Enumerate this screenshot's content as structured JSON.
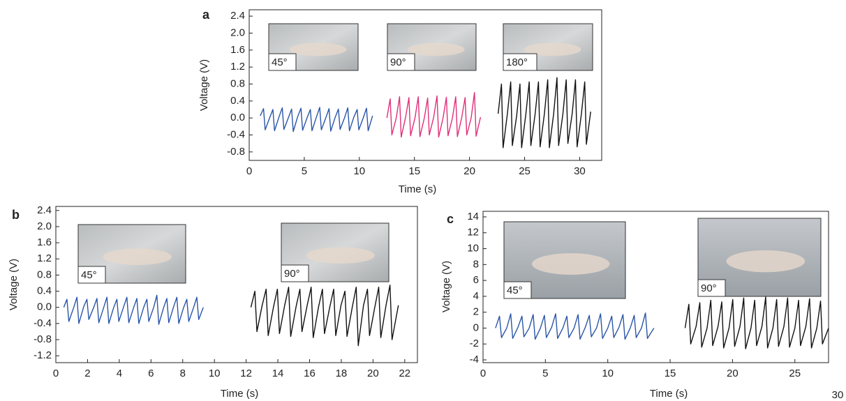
{
  "chart_data": [
    {
      "type": "line",
      "panel_label": "a",
      "xlabel": "Time (s)",
      "ylabel": "Voltage (V)",
      "xlim": [
        0,
        32
      ],
      "ylim": [
        -1.0,
        2.55
      ],
      "xticks": [
        0,
        5,
        10,
        15,
        20,
        25,
        30
      ],
      "yticks": [
        -0.8,
        -0.4,
        {
          "value": 0,
          "label": "0.0"
        },
        0.4,
        0.8,
        1.2,
        1.6,
        {
          "value": 2,
          "label": "2.0"
        },
        2.4
      ],
      "insets": [
        "45°",
        "90°",
        "180°"
      ],
      "series": [
        {
          "color": "#2a55a8",
          "x": [
            1.0,
            1.3,
            1.45,
            1.85,
            2.15,
            2.3,
            2.7,
            3.0,
            3.15,
            3.55,
            3.85,
            4.0,
            4.4,
            4.7,
            4.85,
            5.25,
            5.55,
            5.7,
            6.1,
            6.4,
            6.55,
            6.95,
            7.25,
            7.4,
            7.8,
            8.1,
            8.25,
            8.65,
            8.95,
            9.1,
            9.5,
            9.8,
            9.95,
            10.35,
            10.65,
            10.8,
            11.2
          ],
          "values": [
            0.05,
            0.22,
            -0.28,
            0.0,
            0.2,
            -0.3,
            0.02,
            0.24,
            -0.27,
            0.0,
            0.21,
            -0.32,
            0.03,
            0.23,
            -0.29,
            0.0,
            0.2,
            -0.3,
            0.02,
            0.25,
            -0.28,
            0.0,
            0.22,
            -0.31,
            0.01,
            0.21,
            -0.27,
            0.0,
            0.24,
            -0.3,
            0.02,
            0.2,
            -0.28,
            0.0,
            0.23,
            -0.3,
            0.05
          ]
        },
        {
          "color": "#e0307a",
          "x": [
            12.5,
            12.8,
            12.95,
            13.35,
            13.65,
            13.8,
            14.2,
            14.5,
            14.65,
            15.05,
            15.35,
            15.5,
            15.9,
            16.2,
            16.35,
            16.75,
            17.05,
            17.2,
            17.6,
            17.9,
            18.05,
            18.45,
            18.75,
            18.9,
            19.3,
            19.6,
            19.75,
            20.15,
            20.45,
            20.6,
            21.0
          ],
          "values": [
            0.0,
            0.45,
            -0.4,
            0.0,
            0.5,
            -0.45,
            0.02,
            0.48,
            -0.42,
            0.0,
            0.5,
            -0.44,
            0.0,
            0.47,
            -0.4,
            0.02,
            0.52,
            -0.45,
            0.0,
            0.49,
            -0.42,
            0.0,
            0.5,
            -0.44,
            0.02,
            0.48,
            -0.4,
            0.0,
            0.6,
            -0.43,
            0.02
          ]
        },
        {
          "color": "#111111",
          "x": [
            22.6,
            22.9,
            23.05,
            23.44,
            23.74,
            23.89,
            24.28,
            24.58,
            24.73,
            25.12,
            25.42,
            25.57,
            25.96,
            26.26,
            26.41,
            26.8,
            27.1,
            27.25,
            27.64,
            27.94,
            28.09,
            28.48,
            28.78,
            28.93,
            29.32,
            29.62,
            29.77,
            30.16,
            30.46,
            30.61,
            31.0
          ],
          "values": [
            0.1,
            0.8,
            -0.7,
            0.1,
            0.85,
            -0.65,
            0.05,
            0.8,
            -0.7,
            0.1,
            0.85,
            -0.65,
            0.1,
            0.85,
            -0.68,
            0.1,
            0.9,
            -0.7,
            0.1,
            0.95,
            -0.65,
            0.1,
            0.9,
            -0.6,
            0.1,
            0.9,
            -0.68,
            0.1,
            0.85,
            -0.62,
            0.15
          ]
        }
      ]
    },
    {
      "type": "line",
      "panel_label": "b",
      "xlabel": "Time (s)",
      "ylabel": "Voltage (V)",
      "xlim": [
        0,
        22.8
      ],
      "ylim": [
        -1.37,
        2.5
      ],
      "xticks": [
        0,
        2,
        4,
        6,
        8,
        10,
        12,
        14,
        16,
        18,
        20,
        22
      ],
      "yticks": [
        -1.2,
        -0.8,
        -0.4,
        {
          "value": 0,
          "label": "0.0"
        },
        0.4,
        0.8,
        1.2,
        1.6,
        {
          "value": 2,
          "label": "2.0"
        },
        2.4
      ],
      "insets": [
        "45°",
        "90°"
      ],
      "series": [
        {
          "color": "#2a55a8",
          "x": [
            0.5,
            0.7,
            0.82,
            1.13,
            1.33,
            1.45,
            1.76,
            1.96,
            2.08,
            2.39,
            2.59,
            2.71,
            3.02,
            3.22,
            3.34,
            3.65,
            3.85,
            3.97,
            4.28,
            4.48,
            4.6,
            4.91,
            5.11,
            5.23,
            5.54,
            5.74,
            5.86,
            6.17,
            6.37,
            6.49,
            6.8,
            7.0,
            7.12,
            7.43,
            7.63,
            7.75,
            8.06,
            8.26,
            8.38,
            8.69,
            8.89,
            9.01,
            9.3
          ],
          "values": [
            0.0,
            0.2,
            -0.35,
            0.0,
            0.25,
            -0.4,
            0.02,
            0.2,
            -0.3,
            0.0,
            0.22,
            -0.38,
            0.0,
            0.25,
            -0.4,
            0.0,
            0.2,
            -0.35,
            0.02,
            0.25,
            -0.38,
            0.0,
            0.22,
            -0.4,
            0.0,
            0.2,
            -0.35,
            0.0,
            0.3,
            -0.42,
            0.0,
            0.22,
            -0.38,
            0.02,
            0.25,
            -0.4,
            0.0,
            0.2,
            -0.35,
            0.0,
            0.25,
            -0.3,
            0.0
          ]
        },
        {
          "color": "#111111",
          "x": [
            12.3,
            12.55,
            12.68,
            13.01,
            13.26,
            13.39,
            13.72,
            13.97,
            14.1,
            14.43,
            14.68,
            14.81,
            15.14,
            15.39,
            15.52,
            15.85,
            16.1,
            16.23,
            16.56,
            16.81,
            16.94,
            17.27,
            17.52,
            17.65,
            17.98,
            18.23,
            18.36,
            18.69,
            18.94,
            19.07,
            19.4,
            19.65,
            19.78,
            20.11,
            20.36,
            20.49,
            20.82,
            21.07,
            21.2,
            21.6
          ],
          "values": [
            0.0,
            0.4,
            -0.6,
            0.05,
            0.45,
            -0.7,
            0.0,
            0.45,
            -0.65,
            0.05,
            0.5,
            -0.72,
            0.0,
            0.45,
            -0.6,
            0.05,
            0.5,
            -0.75,
            0.0,
            0.45,
            -0.65,
            0.0,
            0.45,
            -0.7,
            0.05,
            0.4,
            -0.72,
            0.0,
            0.5,
            -0.95,
            0.05,
            0.45,
            -0.7,
            0.0,
            0.5,
            -0.75,
            0.05,
            0.55,
            -0.8,
            0.05
          ]
        }
      ]
    },
    {
      "type": "line",
      "panel_label": "c",
      "xlabel": "Time (s)",
      "ylabel": "Voltage (V)",
      "xlim": [
        0,
        27.7
      ],
      "ylim": [
        -4.35,
        14.7
      ],
      "xticks": [
        0,
        5,
        10,
        15,
        20,
        25
      ],
      "yticks": [
        -4,
        -2,
        0,
        2,
        4,
        6,
        8,
        10,
        12,
        14
      ],
      "insets": [
        "45°",
        "90°"
      ],
      "annotations": [
        "30"
      ],
      "series": [
        {
          "color": "#2a55a8",
          "x": [
            1.0,
            1.32,
            1.48,
            1.9,
            2.22,
            2.38,
            2.8,
            3.12,
            3.28,
            3.7,
            4.02,
            4.18,
            4.6,
            4.92,
            5.08,
            5.5,
            5.82,
            5.98,
            6.4,
            6.72,
            6.88,
            7.3,
            7.62,
            7.78,
            8.2,
            8.52,
            8.68,
            9.1,
            9.42,
            9.58,
            10.0,
            10.32,
            10.48,
            10.9,
            11.22,
            11.38,
            11.8,
            12.12,
            12.28,
            12.7,
            13.02,
            13.18,
            13.7
          ],
          "values": [
            0.0,
            1.5,
            -1.2,
            0.0,
            1.8,
            -1.3,
            0.1,
            1.5,
            -1.1,
            0.0,
            1.7,
            -1.4,
            0.0,
            1.6,
            -1.2,
            0.1,
            1.8,
            -1.3,
            0.0,
            1.5,
            -1.2,
            0.0,
            1.7,
            -1.4,
            0.1,
            1.6,
            -1.1,
            0.0,
            1.8,
            -1.3,
            0.0,
            1.5,
            -1.2,
            0.1,
            1.7,
            -1.4,
            0.0,
            1.6,
            -1.2,
            0.0,
            1.9,
            -1.3,
            0.0
          ]
        },
        {
          "color": "#111111",
          "x": [
            16.2,
            16.5,
            16.65,
            17.08,
            17.38,
            17.53,
            17.96,
            18.26,
            18.41,
            18.84,
            19.14,
            19.29,
            19.72,
            20.02,
            20.17,
            20.6,
            20.9,
            21.05,
            21.48,
            21.78,
            21.93,
            22.36,
            22.66,
            22.81,
            23.24,
            23.54,
            23.69,
            24.12,
            24.42,
            24.57,
            25.0,
            25.3,
            25.45,
            25.88,
            26.18,
            26.33,
            26.76,
            27.06,
            27.21,
            27.7
          ],
          "values": [
            0.0,
            3.0,
            -2.0,
            0.2,
            3.2,
            -2.4,
            0.0,
            3.5,
            -2.2,
            0.2,
            3.3,
            -2.5,
            0.0,
            3.6,
            -2.3,
            0.2,
            3.8,
            -2.6,
            0.0,
            3.5,
            -2.2,
            0.2,
            3.9,
            -2.5,
            0.0,
            3.6,
            -2.3,
            0.2,
            3.8,
            -2.4,
            0.0,
            3.5,
            -2.2,
            0.2,
            3.7,
            -2.5,
            0.0,
            3.4,
            -2.0,
            0.0
          ]
        }
      ]
    }
  ]
}
